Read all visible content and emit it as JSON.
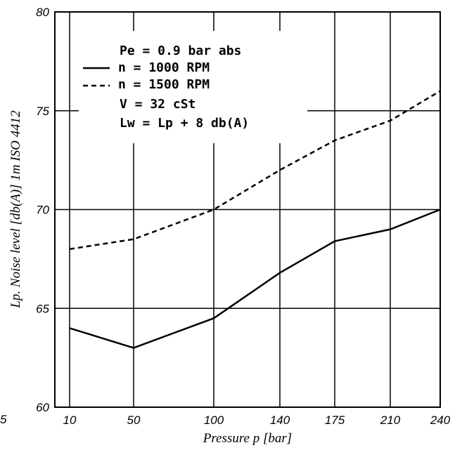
{
  "chart_data": {
    "type": "line",
    "title": "",
    "xlabel": "Pressure p [bar]",
    "ylabel": "Lp. Noise level [db(A)] 1m ISO 4412",
    "categories": [
      "10",
      "50",
      "100",
      "140",
      "175",
      "210",
      "240"
    ],
    "ylim": [
      60,
      80
    ],
    "yticks": [
      "60",
      "65",
      "70",
      "75",
      "80"
    ],
    "grid": true,
    "series": [
      {
        "name": "n = 1000 RPM",
        "style": "solid",
        "values": [
          64.0,
          63.0,
          64.5,
          66.8,
          68.4,
          69.0,
          70.0
        ]
      },
      {
        "name": "n = 1500 RPM",
        "style": "dashed",
        "values": [
          68.0,
          68.5,
          70.0,
          72.0,
          73.5,
          74.5,
          76.0
        ]
      }
    ],
    "annotations": [
      "Pe = 0.9 bar abs",
      "n = 1000 RPM",
      "n = 1500 RPM",
      "V = 32 cSt",
      "Lw = Lp + 8 db(A)"
    ],
    "corner_label": "5",
    "colors": {
      "line": "#000000",
      "background": "#ffffff"
    }
  }
}
